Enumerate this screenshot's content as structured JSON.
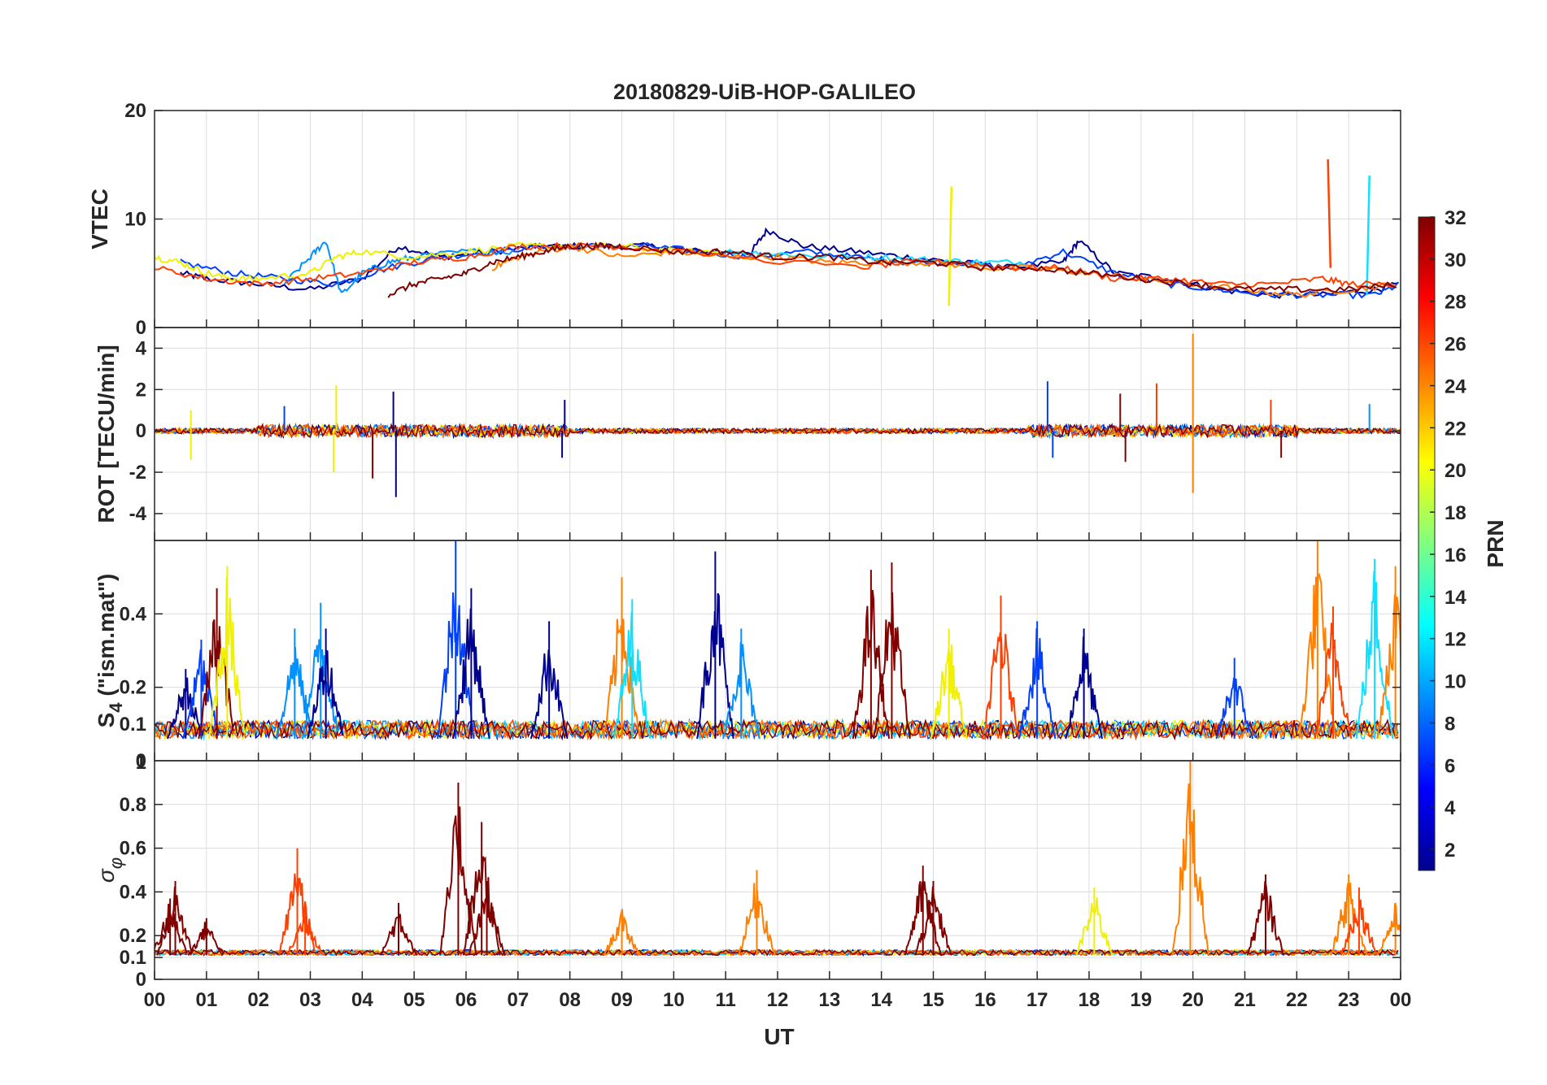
{
  "title": "20180829-UiB-HOP-GALILEO",
  "chart_data": [
    {
      "type": "line",
      "panel": "vtec",
      "ylabel": "VTEC",
      "ylim": [
        0,
        20
      ],
      "yticks": [
        0,
        10,
        20
      ],
      "grid": true,
      "series": [
        {
          "color": "#00008f",
          "x": [
            0.5,
            1,
            2,
            3,
            4,
            4.7,
            5.5,
            6.5,
            7.5,
            8.5,
            9.5,
            10.5,
            11.5,
            11.8,
            12.5,
            13.5,
            14.5,
            15.5,
            16.5,
            17.5,
            17.8,
            18.5,
            19.5,
            20.5,
            21.5,
            22.5,
            23.5,
            24
          ],
          "y": [
            5,
            4.5,
            4,
            3.5,
            4.5,
            7.5,
            6.5,
            7,
            7.5,
            7.5,
            7.5,
            7,
            7,
            9,
            7.5,
            7,
            6.5,
            6,
            5.5,
            6,
            8,
            5,
            4.5,
            3.5,
            3,
            3,
            3.5,
            4
          ]
        },
        {
          "color": "#0040ff",
          "x": [
            0.5,
            1.5,
            2.5,
            3.5,
            4.5,
            5.5,
            6.5,
            7.5,
            8.5,
            9.5,
            10.5,
            11.5,
            12.5,
            13.5,
            14.5,
            15.5,
            16.5,
            17.5,
            18.5,
            19.5,
            20.5,
            21.5,
            22.5,
            23.5,
            24
          ],
          "y": [
            6,
            5,
            4.5,
            4,
            5.5,
            6.5,
            7,
            7.5,
            7.5,
            7.5,
            7,
            6.5,
            7,
            6.5,
            6,
            6,
            5.5,
            7,
            5,
            4,
            3.5,
            3,
            3,
            3,
            4
          ]
        },
        {
          "color": "#0090ff",
          "x": [
            2.5,
            3,
            3.3,
            3.6,
            4,
            4.5,
            5,
            6,
            7
          ],
          "y": [
            4,
            6.5,
            8,
            3,
            5,
            6,
            6.5,
            7,
            7
          ]
        },
        {
          "color": "#10e0ff",
          "x": [
            11,
            12,
            13,
            14,
            15,
            16,
            17
          ],
          "y": [
            7,
            6.8,
            6.5,
            6.5,
            6.2,
            6,
            6
          ],
          "extra": [
            {
              "x": 23.35,
              "y": [
                3,
                14
              ]
            }
          ]
        },
        {
          "color": "#f0f000",
          "x": [
            0,
            0.5,
            1,
            1.5,
            2,
            3,
            3.5,
            4,
            5,
            6,
            7,
            8,
            9,
            10,
            11
          ],
          "y": [
            6.5,
            6,
            5,
            4.5,
            4.5,
            5,
            6.5,
            7,
            6.5,
            7,
            7.5,
            7.5,
            7.5,
            7,
            7
          ],
          "extra": [
            {
              "x": 15.3,
              "y": [
                2,
                13
              ]
            }
          ]
        },
        {
          "color": "#ff8000",
          "x": [
            6.5,
            7,
            8,
            9,
            10,
            11,
            12,
            13,
            14,
            15,
            16,
            17,
            18,
            19,
            20,
            21,
            22,
            23,
            24
          ],
          "y": [
            5.5,
            6.5,
            7.5,
            6.5,
            7,
            6.5,
            6.5,
            6,
            6,
            6,
            5.5,
            5.5,
            5,
            4.5,
            4,
            3.5,
            3,
            3.5,
            4
          ]
        },
        {
          "color": "#ff4000",
          "x": [
            0,
            1,
            2,
            3,
            4,
            5,
            6,
            7,
            8,
            9,
            10,
            13.5,
            14.5,
            15.5,
            16.5,
            17.5,
            18.5,
            19.5,
            20.5,
            21.5,
            22.5,
            23,
            24
          ],
          "y": [
            5.5,
            4.5,
            4,
            4.5,
            5,
            6,
            6.5,
            7.5,
            7.5,
            7.5,
            7,
            5.5,
            6,
            6,
            5.5,
            5.5,
            4.5,
            4.5,
            4,
            4,
            4.5,
            4,
            4
          ],
          "extra": [
            {
              "x": 22.6,
              "y": [
                15.5,
                5.5
              ]
            }
          ]
        },
        {
          "color": "#800000",
          "x": [
            4.5,
            5,
            5.5,
            6,
            6.5,
            7,
            7.5,
            8,
            8.5,
            9,
            10,
            11,
            12,
            13,
            14,
            15,
            16,
            17,
            18,
            19,
            20,
            21,
            22,
            23,
            24
          ],
          "y": [
            3,
            4,
            4.5,
            5,
            6,
            6.5,
            7,
            7.5,
            7.5,
            7.5,
            7,
            7,
            6.5,
            6.5,
            6,
            6,
            5.5,
            5.5,
            5,
            4.5,
            4,
            3.5,
            3.5,
            3.5,
            4
          ]
        }
      ]
    },
    {
      "type": "line",
      "panel": "rot",
      "ylabel": "ROT [TECU/min]",
      "ylim": [
        -5.3,
        5
      ],
      "yticks": [
        -4,
        -2,
        0,
        2,
        4
      ],
      "grid": true,
      "spikes": [
        {
          "x": 0.7,
          "y": 1,
          "color": "#f0f000"
        },
        {
          "x": 0.7,
          "y": -1.4,
          "color": "#f0f000"
        },
        {
          "x": 2.5,
          "y": 1.2,
          "color": "#0040ff"
        },
        {
          "x": 3.5,
          "y": 2.2,
          "color": "#f0f000"
        },
        {
          "x": 3.45,
          "y": -2,
          "color": "#f0f000"
        },
        {
          "x": 4.2,
          "y": -2.3,
          "color": "#800000"
        },
        {
          "x": 4.6,
          "y": 1.9,
          "color": "#00008f"
        },
        {
          "x": 4.65,
          "y": -3.2,
          "color": "#00008f"
        },
        {
          "x": 7.9,
          "y": 1.5,
          "color": "#00008f"
        },
        {
          "x": 7.85,
          "y": -1.3,
          "color": "#00008f"
        },
        {
          "x": 17.2,
          "y": 2.4,
          "color": "#0040ff"
        },
        {
          "x": 17.3,
          "y": -1.3,
          "color": "#0040ff"
        },
        {
          "x": 18.6,
          "y": 1.8,
          "color": "#800000"
        },
        {
          "x": 18.7,
          "y": -1.5,
          "color": "#800000"
        },
        {
          "x": 19.3,
          "y": 2.3,
          "color": "#ff4000"
        },
        {
          "x": 20,
          "y": 4.7,
          "color": "#ff8000"
        },
        {
          "x": 20,
          "y": -3,
          "color": "#ff8000"
        },
        {
          "x": 21.5,
          "y": 1.5,
          "color": "#ff4000"
        },
        {
          "x": 21.7,
          "y": -1.3,
          "color": "#800000"
        },
        {
          "x": 23.4,
          "y": 1.3,
          "color": "#0090ff"
        }
      ]
    },
    {
      "type": "line",
      "panel": "s4",
      "ylabel": "S",
      "ylabel_sub": "4",
      "ylabel_rest": " (\"ism.mat\")",
      "ylim": [
        0,
        0.6
      ],
      "yticks": [
        0.1,
        0.2,
        0.4
      ],
      "yticks_extra": [
        "0",
        "1"
      ],
      "grid": true,
      "peaks": [
        {
          "x": 0.6,
          "y": 0.25,
          "color": "#00008f"
        },
        {
          "x": 0.9,
          "y": 0.33,
          "color": "#0040ff"
        },
        {
          "x": 1.2,
          "y": 0.47,
          "color": "#800000"
        },
        {
          "x": 1.4,
          "y": 0.53,
          "color": "#f0f000"
        },
        {
          "x": 2.7,
          "y": 0.36,
          "color": "#0090ff"
        },
        {
          "x": 3.2,
          "y": 0.43,
          "color": "#0090ff"
        },
        {
          "x": 3.3,
          "y": 0.36,
          "color": "#00008f"
        },
        {
          "x": 5.8,
          "y": 0.6,
          "color": "#0040ff"
        },
        {
          "x": 6.1,
          "y": 0.47,
          "color": "#00008f"
        },
        {
          "x": 7.6,
          "y": 0.38,
          "color": "#00008f"
        },
        {
          "x": 9.0,
          "y": 0.5,
          "color": "#ff8000"
        },
        {
          "x": 9.2,
          "y": 0.44,
          "color": "#10e0ff"
        },
        {
          "x": 10.8,
          "y": 0.57,
          "color": "#00008f"
        },
        {
          "x": 11.3,
          "y": 0.36,
          "color": "#0090ff"
        },
        {
          "x": 14.2,
          "y": 0.54,
          "color": "#800000"
        },
        {
          "x": 13.8,
          "y": 0.52,
          "color": "#800000"
        },
        {
          "x": 15.3,
          "y": 0.36,
          "color": "#f0f000"
        },
        {
          "x": 16.3,
          "y": 0.45,
          "color": "#ff4000"
        },
        {
          "x": 17.0,
          "y": 0.38,
          "color": "#0040ff"
        },
        {
          "x": 17.9,
          "y": 0.36,
          "color": "#00008f"
        },
        {
          "x": 20.8,
          "y": 0.28,
          "color": "#0040ff"
        },
        {
          "x": 22.4,
          "y": 0.6,
          "color": "#ff8000"
        },
        {
          "x": 22.7,
          "y": 0.42,
          "color": "#ff4000"
        },
        {
          "x": 23.5,
          "y": 0.55,
          "color": "#10e0ff"
        },
        {
          "x": 23.9,
          "y": 0.53,
          "color": "#ff8000"
        }
      ]
    },
    {
      "type": "line",
      "panel": "sigma_phi",
      "ylabel": "σ",
      "ylabel_sub": "φ",
      "ylim": [
        0,
        1
      ],
      "yticks": [
        0,
        0.1,
        0.2,
        0.4,
        0.6,
        0.8
      ],
      "grid": true,
      "peaks": [
        {
          "x": 0.3,
          "y": 0.37,
          "color": "#800000"
        },
        {
          "x": 0.4,
          "y": 0.45,
          "color": "#800000"
        },
        {
          "x": 1.0,
          "y": 0.28,
          "color": "#800000"
        },
        {
          "x": 2.75,
          "y": 0.6,
          "color": "#ff4000"
        },
        {
          "x": 2.9,
          "y": 0.34,
          "color": "#ff4000"
        },
        {
          "x": 4.7,
          "y": 0.35,
          "color": "#800000"
        },
        {
          "x": 5.85,
          "y": 0.9,
          "color": "#800000"
        },
        {
          "x": 6.3,
          "y": 0.72,
          "color": "#800000"
        },
        {
          "x": 6.4,
          "y": 0.45,
          "color": "#800000"
        },
        {
          "x": 9.0,
          "y": 0.32,
          "color": "#ff8000"
        },
        {
          "x": 11.6,
          "y": 0.5,
          "color": "#ff8000"
        },
        {
          "x": 14.8,
          "y": 0.52,
          "color": "#800000"
        },
        {
          "x": 15.0,
          "y": 0.45,
          "color": "#800000"
        },
        {
          "x": 18.1,
          "y": 0.42,
          "color": "#f0f000"
        },
        {
          "x": 19.95,
          "y": 1.0,
          "color": "#ff8000"
        },
        {
          "x": 21.4,
          "y": 0.48,
          "color": "#800000"
        },
        {
          "x": 23.0,
          "y": 0.48,
          "color": "#ff8000"
        },
        {
          "x": 23.2,
          "y": 0.42,
          "color": "#ff4000"
        },
        {
          "x": 23.9,
          "y": 0.35,
          "color": "#ff8000"
        }
      ]
    }
  ],
  "xaxis": {
    "label": "UT",
    "ticks": [
      "00",
      "01",
      "02",
      "03",
      "04",
      "05",
      "06",
      "07",
      "08",
      "09",
      "10",
      "11",
      "12",
      "13",
      "14",
      "15",
      "16",
      "17",
      "18",
      "19",
      "20",
      "21",
      "22",
      "23",
      "00"
    ]
  },
  "colorbar": {
    "label": "PRN",
    "range": [
      1,
      32
    ],
    "ticks": [
      "2",
      "4",
      "6",
      "8",
      "10",
      "12",
      "14",
      "16",
      "18",
      "20",
      "22",
      "24",
      "26",
      "28",
      "30",
      "32"
    ],
    "colormap": "jet"
  }
}
